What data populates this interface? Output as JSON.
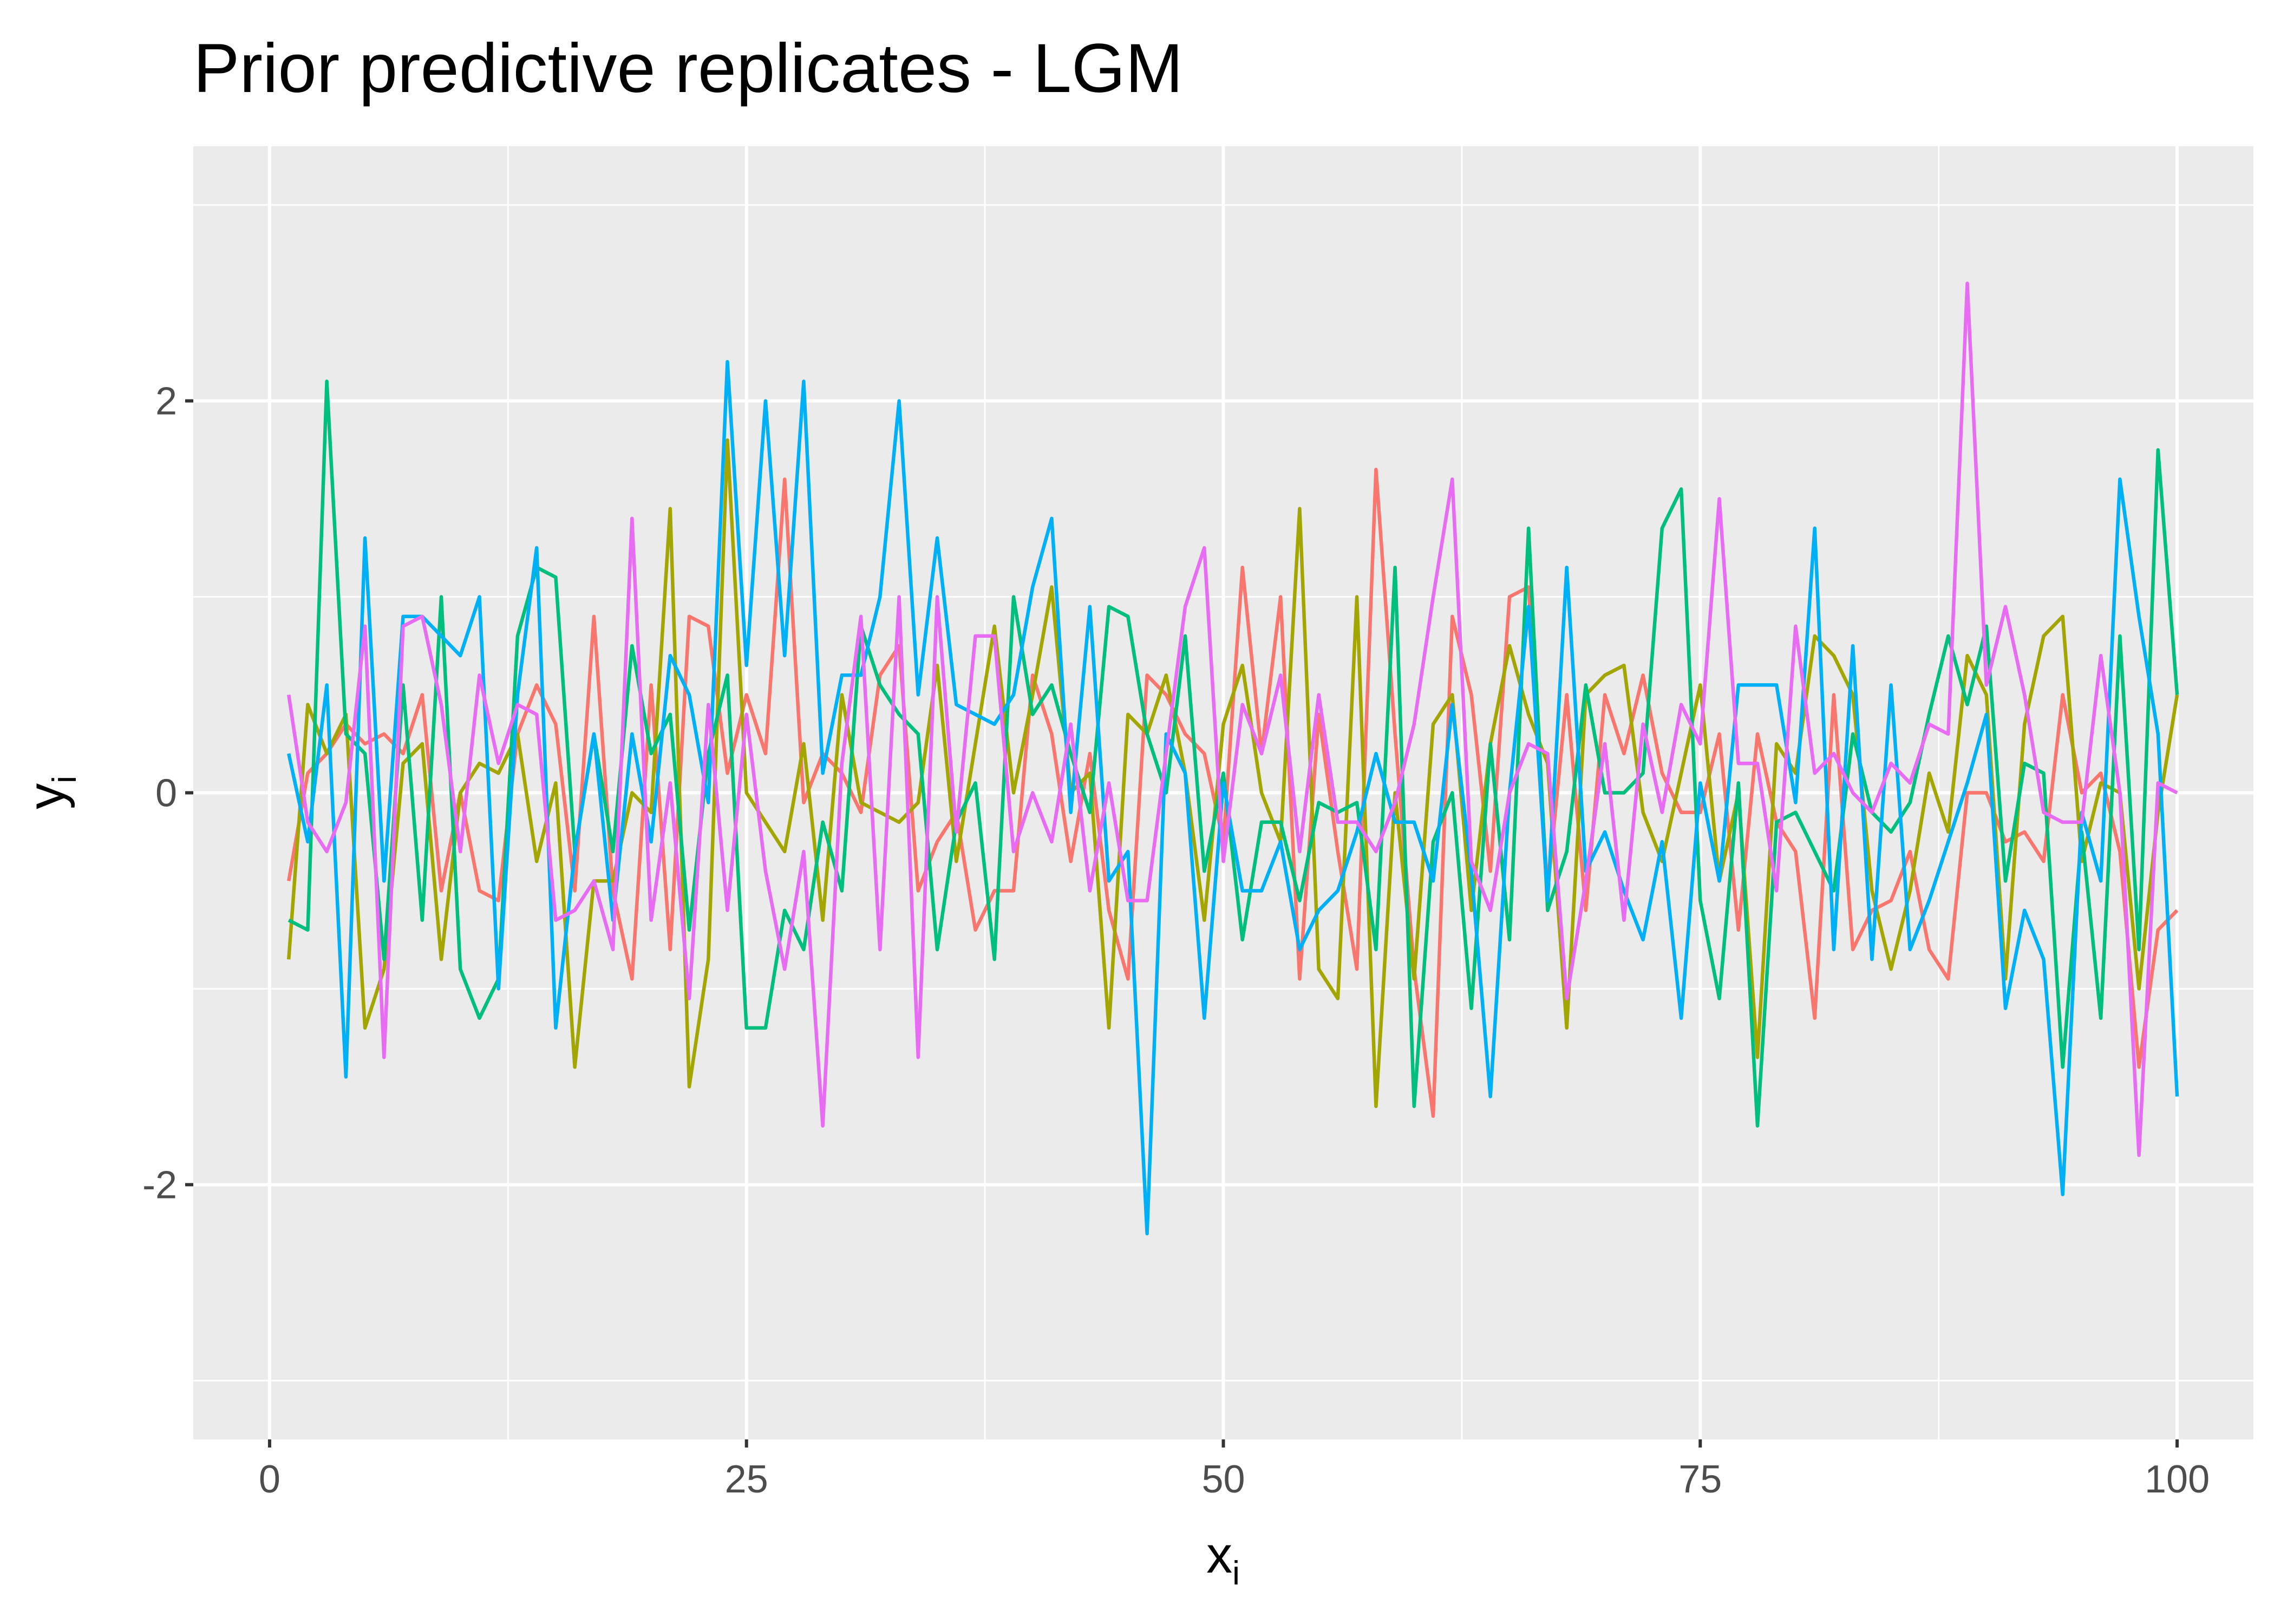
{
  "chart_data": {
    "type": "line",
    "title": "Prior predictive replicates - LGM",
    "xlabel": {
      "base": "x",
      "sub": "i"
    },
    "ylabel": {
      "base": "y",
      "sub": "i"
    },
    "xlim": [
      -4,
      104
    ],
    "ylim": [
      -3.3,
      3.3
    ],
    "x_ticks": [
      0,
      25,
      50,
      75,
      100
    ],
    "x_tick_labels": [
      "0",
      "25",
      "50",
      "75",
      "100"
    ],
    "y_ticks": [
      -2,
      0,
      2
    ],
    "y_tick_labels": [
      "-2",
      "0",
      "2"
    ],
    "grid": true,
    "legend": "none",
    "x": [
      1,
      2,
      3,
      4,
      5,
      6,
      7,
      8,
      9,
      10,
      11,
      12,
      13,
      14,
      15,
      16,
      17,
      18,
      19,
      20,
      21,
      22,
      23,
      24,
      25,
      26,
      27,
      28,
      29,
      30,
      31,
      32,
      33,
      34,
      35,
      36,
      37,
      38,
      39,
      40,
      41,
      42,
      43,
      44,
      45,
      46,
      47,
      48,
      49,
      50,
      51,
      52,
      53,
      54,
      55,
      56,
      57,
      58,
      59,
      60,
      61,
      62,
      63,
      64,
      65,
      66,
      67,
      68,
      69,
      70,
      71,
      72,
      73,
      74,
      75,
      76,
      77,
      78,
      79,
      80,
      81,
      82,
      83,
      84,
      85,
      86,
      87,
      88,
      89,
      90,
      91,
      92,
      93,
      94,
      95,
      96,
      97,
      98,
      99,
      100
    ],
    "series": [
      {
        "color": "#F8766D",
        "values": [
          -0.45,
          0.1,
          0.2,
          0.35,
          0.25,
          0.3,
          0.2,
          0.5,
          -0.5,
          0.0,
          -0.5,
          -0.55,
          0.3,
          0.55,
          0.35,
          -0.5,
          0.9,
          -0.5,
          -0.95,
          0.55,
          -0.8,
          0.9,
          0.85,
          0.1,
          0.5,
          0.2,
          1.6,
          -0.05,
          0.2,
          0.1,
          -0.1,
          0.6,
          0.75,
          -0.5,
          -0.25,
          -0.1,
          -0.7,
          -0.5,
          -0.5,
          0.6,
          0.3,
          -0.35,
          0.2,
          -0.6,
          -0.95,
          0.6,
          0.5,
          0.3,
          0.2,
          -0.25,
          1.15,
          0.2,
          1.0,
          -0.95,
          0.4,
          -0.3,
          -0.9,
          1.65,
          0.3,
          -0.9,
          -1.65,
          0.9,
          0.5,
          -0.4,
          1.0,
          1.05,
          -0.5,
          0.5,
          -0.6,
          0.5,
          0.2,
          0.6,
          0.1,
          -0.1,
          -0.1,
          0.3,
          -0.7,
          0.3,
          -0.15,
          -0.3,
          -1.15,
          0.5,
          -0.8,
          -0.6,
          -0.55,
          -0.3,
          -0.8,
          -0.95,
          0.0,
          0.0,
          -0.25,
          -0.2,
          -0.35,
          0.5,
          0.0,
          0.1,
          -0.3,
          -1.4,
          -0.7,
          -0.6
        ]
      },
      {
        "color": "#A3A500",
        "values": [
          -0.85,
          0.45,
          0.2,
          0.4,
          -1.2,
          -0.9,
          0.15,
          0.25,
          -0.85,
          0.0,
          0.15,
          0.1,
          0.3,
          -0.35,
          0.05,
          -1.4,
          -0.45,
          -0.45,
          0.0,
          -0.1,
          1.45,
          -1.5,
          -0.85,
          1.8,
          0.0,
          -0.15,
          -0.3,
          0.25,
          -0.65,
          0.5,
          -0.05,
          -0.1,
          -0.15,
          -0.05,
          0.65,
          -0.35,
          0.25,
          0.85,
          0.0,
          0.5,
          1.05,
          0.0,
          0.1,
          -1.2,
          0.4,
          0.3,
          0.6,
          0.1,
          -0.65,
          0.35,
          0.65,
          0.0,
          -0.25,
          1.45,
          -0.9,
          -1.05,
          1.0,
          -1.6,
          0.0,
          -0.95,
          0.35,
          0.5,
          -0.6,
          0.25,
          0.75,
          0.4,
          0.15,
          -1.2,
          0.5,
          0.6,
          0.65,
          -0.1,
          -0.35,
          0.1,
          0.55,
          -0.45,
          0.0,
          -1.35,
          0.25,
          0.1,
          0.8,
          0.7,
          0.5,
          -0.5,
          -0.9,
          -0.5,
          0.1,
          -0.2,
          0.7,
          0.5,
          -0.95,
          0.35,
          0.8,
          0.9,
          -0.35,
          0.05,
          0.0,
          -1.0,
          -0.1,
          0.5
        ]
      },
      {
        "color": "#00BF7D",
        "values": [
          -0.65,
          -0.7,
          2.1,
          0.3,
          0.2,
          -0.85,
          0.55,
          -0.65,
          1.0,
          -0.9,
          -1.15,
          -0.95,
          0.8,
          1.15,
          1.1,
          -0.3,
          0.3,
          -0.3,
          0.75,
          0.2,
          0.4,
          -0.7,
          0.2,
          0.6,
          -1.2,
          -1.2,
          -0.6,
          -0.8,
          -0.15,
          -0.5,
          0.85,
          0.55,
          0.4,
          0.3,
          -0.8,
          -0.15,
          0.05,
          -0.85,
          1.0,
          0.4,
          0.55,
          0.2,
          -0.1,
          0.95,
          0.9,
          0.3,
          0.0,
          0.8,
          -0.4,
          0.1,
          -0.75,
          -0.15,
          -0.15,
          -0.55,
          -0.05,
          -0.1,
          -0.05,
          -0.8,
          1.15,
          -1.6,
          -0.25,
          0.0,
          -1.1,
          0.25,
          -0.75,
          1.35,
          -0.6,
          -0.3,
          0.55,
          0.0,
          0.0,
          0.1,
          1.35,
          1.55,
          -0.55,
          -1.05,
          0.05,
          -1.7,
          -0.15,
          -0.1,
          -0.3,
          -0.5,
          0.3,
          -0.1,
          -0.2,
          -0.05,
          0.4,
          0.8,
          0.45,
          0.85,
          -0.45,
          0.15,
          0.1,
          -1.4,
          -0.2,
          -1.15,
          0.8,
          -0.8,
          1.75,
          0.5
        ]
      },
      {
        "color": "#00B0F6",
        "values": [
          0.2,
          -0.25,
          0.55,
          -1.45,
          1.3,
          -0.45,
          0.9,
          0.9,
          0.8,
          0.7,
          1.0,
          -1.0,
          0.5,
          1.25,
          -1.2,
          -0.3,
          0.3,
          -0.65,
          0.3,
          -0.25,
          0.7,
          0.5,
          -0.05,
          2.2,
          0.65,
          2.0,
          0.7,
          2.1,
          0.1,
          0.6,
          0.6,
          1.0,
          2.0,
          0.5,
          1.3,
          0.45,
          0.4,
          0.35,
          0.5,
          1.05,
          1.4,
          -0.1,
          0.95,
          -0.45,
          -0.3,
          -2.25,
          0.3,
          0.1,
          -1.15,
          0.05,
          -0.5,
          -0.5,
          -0.25,
          -0.8,
          -0.6,
          -0.5,
          -0.2,
          0.2,
          -0.15,
          -0.15,
          -0.45,
          0.45,
          -0.4,
          -1.55,
          0.0,
          0.95,
          -0.55,
          1.15,
          -0.4,
          -0.2,
          -0.5,
          -0.75,
          -0.25,
          -1.15,
          0.05,
          -0.45,
          0.55,
          0.55,
          0.55,
          -0.05,
          1.35,
          -0.8,
          0.75,
          -0.85,
          0.55,
          -0.8,
          -0.55,
          -0.25,
          0.05,
          0.4,
          -1.1,
          -0.6,
          -0.85,
          -2.05,
          -0.1,
          -0.45,
          1.6,
          0.9,
          0.3,
          -1.55
        ]
      },
      {
        "color": "#E76BF3",
        "values": [
          0.5,
          -0.15,
          -0.3,
          -0.05,
          0.85,
          -1.35,
          0.85,
          0.9,
          0.45,
          -0.3,
          0.6,
          0.15,
          0.45,
          0.4,
          -0.65,
          -0.6,
          -0.45,
          -0.8,
          1.4,
          -0.65,
          0.05,
          -1.05,
          0.45,
          -0.6,
          0.4,
          -0.4,
          -0.9,
          -0.3,
          -1.7,
          0.15,
          0.9,
          -0.8,
          1.0,
          -1.35,
          1.0,
          -0.2,
          0.8,
          0.8,
          -0.3,
          0.0,
          -0.25,
          0.35,
          -0.5,
          0.05,
          -0.55,
          -0.55,
          0.2,
          0.95,
          1.25,
          -0.35,
          0.45,
          0.2,
          0.6,
          -0.3,
          0.5,
          -0.15,
          -0.15,
          -0.3,
          -0.05,
          0.35,
          1.0,
          1.6,
          -0.35,
          -0.6,
          0.0,
          0.25,
          0.2,
          -1.05,
          -0.45,
          0.25,
          -0.65,
          0.35,
          -0.1,
          0.45,
          0.25,
          1.5,
          0.15,
          0.15,
          -0.5,
          0.85,
          0.1,
          0.2,
          0.0,
          -0.1,
          0.15,
          0.05,
          0.35,
          0.3,
          2.6,
          0.55,
          0.95,
          0.5,
          -0.1,
          -0.15,
          -0.15,
          0.7,
          0.0,
          -1.85,
          0.05,
          0.0
        ]
      }
    ]
  }
}
